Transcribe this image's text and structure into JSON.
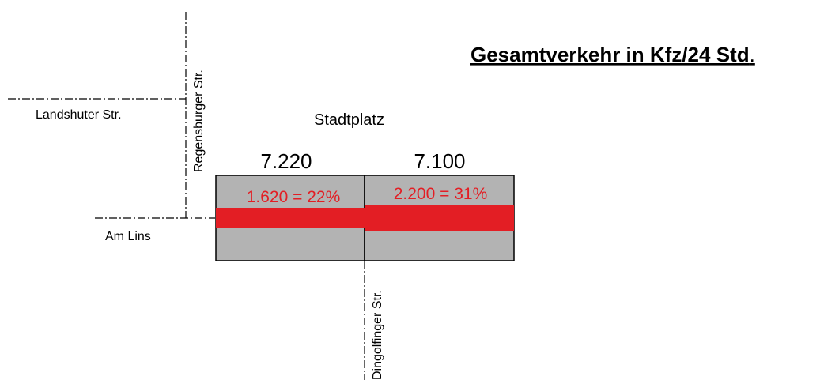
{
  "header": {
    "title": "Gesamtverkehr in Kfz/24 Std",
    "title_end": "."
  },
  "streets": {
    "landshuter": "Landshuter Str.",
    "regensburger": "Regensburger Str.",
    "am_lins": "Am Lins",
    "dingolfinger": "Dingolfinger Str.",
    "stadtplatz": "Stadtplatz"
  },
  "segments": [
    {
      "total": "7.220",
      "share": "1.620 = 22%"
    },
    {
      "total": "7.100",
      "share": "2.200 = 31%"
    }
  ]
}
